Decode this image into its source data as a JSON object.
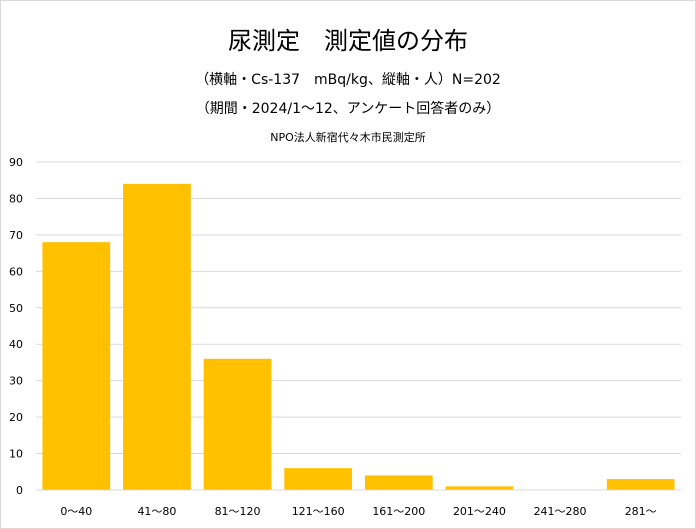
{
  "chart_data": {
    "type": "bar",
    "title": "尿測定　測定値の分布",
    "subtitle_lines": [
      "（横軸・Cs-137　mBq/kg、縦軸・人）N=202",
      "（期間・2024/1～12、アンケート回答者のみ）"
    ],
    "source": "NPO法人新宿代々木市民測定所",
    "categories": [
      "0～40",
      "41～80",
      "81～120",
      "121～160",
      "161～200",
      "201～240",
      "241～280",
      "281～"
    ],
    "values": [
      68,
      84,
      36,
      6,
      4,
      1,
      0,
      3
    ],
    "xlabel": "",
    "ylabel": "",
    "ylim": [
      0,
      90
    ],
    "yticks": [
      0,
      10,
      20,
      30,
      40,
      50,
      60,
      70,
      80,
      90
    ],
    "grid": true,
    "legend": "none",
    "bar_color": "#ffc000",
    "grid_color": "#d9d9d9"
  }
}
